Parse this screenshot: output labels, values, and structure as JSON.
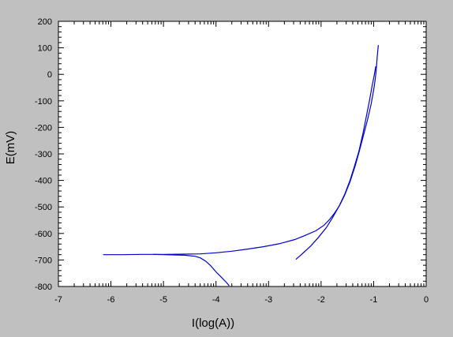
{
  "chart_data": {
    "type": "line",
    "title": "",
    "xlabel": "I(log(A))",
    "ylabel": "E(mV)",
    "xlim": [
      -7,
      0
    ],
    "ylim": [
      -800,
      200
    ],
    "x_ticks": [
      "-7",
      "-6",
      "-5",
      "-4",
      "-3",
      "-2",
      "-1",
      "0"
    ],
    "y_ticks": [
      "200",
      "100",
      "0",
      "-100",
      "-200",
      "-300",
      "-400",
      "-500",
      "-600",
      "-700",
      "-800"
    ],
    "grid": false,
    "legend": "none",
    "colors": {
      "background": "#c0c0c0",
      "plot_area": "#ffffff",
      "series": "#0000cc"
    },
    "series": [
      {
        "x": [
          -6.15,
          -5.8,
          -5.4,
          -5.0,
          -4.6,
          -4.3,
          -4.0,
          -3.7,
          -3.4,
          -3.1,
          -2.8,
          -2.5,
          -2.3,
          -2.1,
          -1.95,
          -1.85,
          -1.75,
          -1.65,
          -1.55,
          -1.45,
          -1.35,
          -1.28,
          -1.2,
          -1.12,
          -1.05,
          -1.0,
          -0.97,
          -0.95,
          -0.93,
          -0.91
        ],
        "y": [
          -680,
          -680,
          -679,
          -679,
          -678,
          -677,
          -673,
          -667,
          -659,
          -650,
          -639,
          -623,
          -607,
          -590,
          -570,
          -550,
          -525,
          -495,
          -455,
          -405,
          -345,
          -295,
          -235,
          -175,
          -115,
          -60,
          -20,
          20,
          70,
          110
        ]
      },
      {
        "x": [
          -2.48,
          -2.35,
          -2.2,
          -2.05,
          -1.9,
          -1.78,
          -1.66,
          -1.55,
          -1.45,
          -1.37,
          -1.28,
          -1.2,
          -1.14,
          -1.08,
          -1.03,
          -0.99,
          -0.96
        ],
        "y": [
          -698,
          -675,
          -648,
          -615,
          -578,
          -540,
          -498,
          -452,
          -400,
          -350,
          -290,
          -220,
          -160,
          -100,
          -45,
          -5,
          30
        ]
      },
      {
        "x": [
          -5.2,
          -5.0,
          -4.8,
          -4.6,
          -4.4,
          -4.3,
          -4.2,
          -4.1,
          -4.0,
          -3.9,
          -3.8,
          -3.75
        ],
        "y": [
          -679,
          -680,
          -681,
          -682,
          -686,
          -692,
          -704,
          -722,
          -745,
          -765,
          -785,
          -797
        ]
      }
    ]
  }
}
